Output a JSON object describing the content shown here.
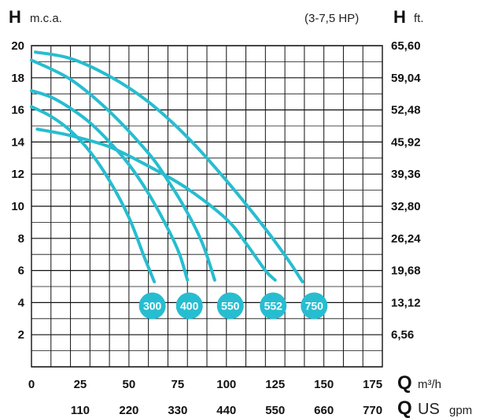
{
  "header": {
    "left_symbol": "H",
    "left_unit": "m.c.a.",
    "hp_range": "(3-7,5 HP)",
    "right_symbol": "H",
    "right_unit": "ft."
  },
  "footer": {
    "q_symbol": "Q",
    "q_unit_m3": "m³/h",
    "q_unit_gpm_us": "US",
    "q_unit_gpm": "gpm"
  },
  "colors": {
    "curve": "#27bdd0",
    "badge": "#27bdd0",
    "grid": "#111111"
  },
  "chart_data": {
    "type": "line",
    "title": "",
    "xlabel": "Q m³/h",
    "ylabel": "H m.c.a.",
    "xlim": [
      0,
      180
    ],
    "ylim": [
      0,
      20
    ],
    "grid": true,
    "x_ticks_m3h": [
      "0",
      "25",
      "50",
      "75",
      "100",
      "125",
      "150",
      "175"
    ],
    "x_ticks_gpm": [
      {
        "value": 25,
        "label": "110"
      },
      {
        "value": 50,
        "label": "220"
      },
      {
        "value": 75,
        "label": "330"
      },
      {
        "value": 100,
        "label": "440"
      },
      {
        "value": 125,
        "label": "550"
      },
      {
        "value": 150,
        "label": "660"
      },
      {
        "value": 175,
        "label": "770"
      }
    ],
    "y_ticks_left": [
      "2",
      "4",
      "6",
      "8",
      "10",
      "12",
      "14",
      "16",
      "18",
      "20"
    ],
    "y_ticks_right": [
      "6,56",
      "13,12",
      "19,68",
      "26,24",
      "32,80",
      "39,36",
      "45,92",
      "52,48",
      "59,04",
      "65,60"
    ],
    "series": [
      {
        "name": "300",
        "badge_x": 62,
        "badge_y": 3.8,
        "points": [
          [
            0,
            16.2
          ],
          [
            10,
            15.6
          ],
          [
            20,
            14.7
          ],
          [
            30,
            13.4
          ],
          [
            40,
            11.6
          ],
          [
            50,
            9.3
          ],
          [
            58,
            6.8
          ],
          [
            63,
            5.3
          ]
        ]
      },
      {
        "name": "400",
        "badge_x": 81,
        "badge_y": 3.8,
        "points": [
          [
            0,
            17.2
          ],
          [
            10,
            16.8
          ],
          [
            20,
            16.1
          ],
          [
            30,
            15.2
          ],
          [
            40,
            14.0
          ],
          [
            50,
            12.6
          ],
          [
            60,
            10.8
          ],
          [
            70,
            8.6
          ],
          [
            76,
            7.0
          ],
          [
            80,
            5.4
          ]
        ]
      },
      {
        "name": "550",
        "badge_x": 102,
        "badge_y": 3.8,
        "points": [
          [
            0,
            19.1
          ],
          [
            20,
            17.9
          ],
          [
            40,
            15.9
          ],
          [
            60,
            13.3
          ],
          [
            70,
            11.6
          ],
          [
            80,
            9.6
          ],
          [
            88,
            7.6
          ],
          [
            94,
            5.4
          ]
        ]
      },
      {
        "name": "552",
        "badge_x": 124,
        "badge_y": 3.8,
        "points": [
          [
            3,
            14.8
          ],
          [
            20,
            14.4
          ],
          [
            40,
            13.7
          ],
          [
            60,
            12.5
          ],
          [
            80,
            11.1
          ],
          [
            100,
            9.2
          ],
          [
            110,
            7.7
          ],
          [
            120,
            6.0
          ],
          [
            125,
            5.4
          ]
        ]
      },
      {
        "name": "750",
        "badge_x": 145,
        "badge_y": 3.8,
        "points": [
          [
            2,
            19.6
          ],
          [
            20,
            19.2
          ],
          [
            40,
            18.1
          ],
          [
            60,
            16.5
          ],
          [
            80,
            14.3
          ],
          [
            100,
            11.6
          ],
          [
            120,
            8.6
          ],
          [
            132,
            6.6
          ],
          [
            139,
            5.3
          ]
        ]
      }
    ]
  }
}
